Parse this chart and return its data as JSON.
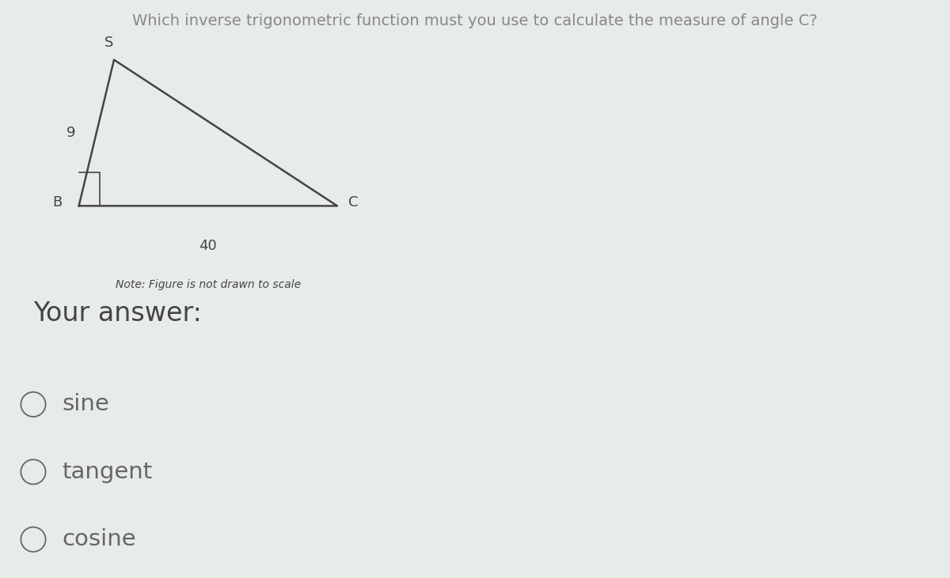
{
  "title": "Which inverse trigonometric function must you use to calculate the measure of angle C?",
  "title_fontsize": 14,
  "title_color": "#888888",
  "bg_color": "#e8ece8",
  "upper_bg_color": "#eaede9",
  "lower_bg_color": "#e2e6e2",
  "your_answer_label": "Your answer:",
  "your_answer_fontsize": 24,
  "your_answer_bg": "#d8ddd8",
  "options": [
    "sine",
    "tangent",
    "cosine"
  ],
  "option_fontsize": 21,
  "option_color": "#666666",
  "label_B": "B",
  "label_S": "S",
  "label_C": "C",
  "side_BS_label": "9",
  "side_BC_label": "40",
  "note": "Note: Figure is not drawn to scale",
  "note_fontsize": 10,
  "line_color": "#444444",
  "line_width": 1.8,
  "triangle_label_fontsize": 13,
  "side_label_fontsize": 13
}
